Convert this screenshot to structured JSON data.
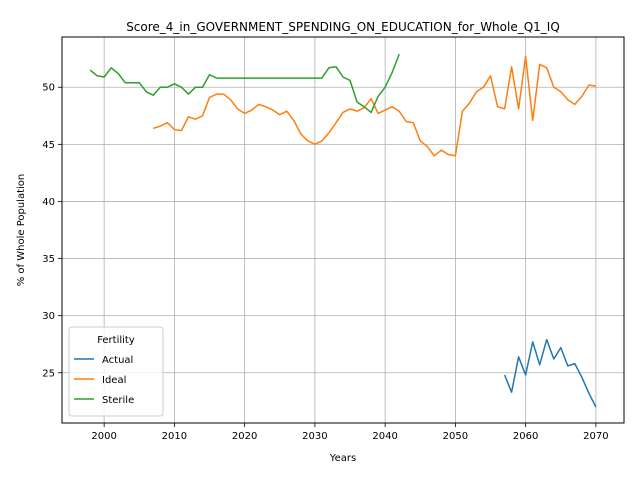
{
  "chart_data": {
    "type": "line",
    "title": "Score_4_in_GOVERNMENT_SPENDING_ON_EDUCATION_for_Whole_Q1_IQ",
    "xlabel": "Years",
    "ylabel": "% of Whole Population",
    "xlim": [
      1994,
      2074
    ],
    "ylim": [
      20.6,
      54.4
    ],
    "xticks": [
      2000,
      2010,
      2020,
      2030,
      2040,
      2050,
      2060,
      2070
    ],
    "yticks": [
      25,
      30,
      35,
      40,
      45,
      50
    ],
    "grid": true,
    "legend": {
      "title": "Fertility",
      "placement": "lower-left"
    },
    "series": [
      {
        "name": "Actual",
        "color": "#1f77b4",
        "points": [
          [
            2057,
            24.8
          ],
          [
            2058,
            23.3
          ],
          [
            2059,
            26.4
          ],
          [
            2060,
            24.8
          ],
          [
            2061,
            27.7
          ],
          [
            2062,
            25.7
          ],
          [
            2063,
            27.9
          ],
          [
            2064,
            26.2
          ],
          [
            2065,
            27.2
          ],
          [
            2066,
            25.6
          ],
          [
            2067,
            25.8
          ],
          [
            2068,
            24.6
          ],
          [
            2069,
            23.2
          ],
          [
            2070,
            22.0
          ]
        ]
      },
      {
        "name": "Ideal",
        "color": "#ff7f0e",
        "points": [
          [
            2007,
            46.4
          ],
          [
            2008,
            46.6
          ],
          [
            2009,
            46.9
          ],
          [
            2010,
            46.3
          ],
          [
            2011,
            46.2
          ],
          [
            2012,
            47.4
          ],
          [
            2013,
            47.2
          ],
          [
            2014,
            47.5
          ],
          [
            2015,
            49.1
          ],
          [
            2016,
            49.4
          ],
          [
            2017,
            49.4
          ],
          [
            2018,
            48.9
          ],
          [
            2019,
            48.1
          ],
          [
            2020,
            47.7
          ],
          [
            2021,
            48.0
          ],
          [
            2022,
            48.5
          ],
          [
            2023,
            48.3
          ],
          [
            2024,
            48.0
          ],
          [
            2025,
            47.6
          ],
          [
            2026,
            47.9
          ],
          [
            2027,
            47.1
          ],
          [
            2028,
            45.9
          ],
          [
            2029,
            45.3
          ],
          [
            2030,
            45.0
          ],
          [
            2031,
            45.3
          ],
          [
            2032,
            46.0
          ],
          [
            2033,
            46.9
          ],
          [
            2034,
            47.8
          ],
          [
            2035,
            48.1
          ],
          [
            2036,
            47.9
          ],
          [
            2037,
            48.2
          ],
          [
            2038,
            49.0
          ],
          [
            2039,
            47.7
          ],
          [
            2040,
            48.0
          ],
          [
            2041,
            48.3
          ],
          [
            2042,
            47.9
          ],
          [
            2043,
            47.0
          ],
          [
            2044,
            46.9
          ],
          [
            2045,
            45.3
          ],
          [
            2046,
            44.8
          ],
          [
            2047,
            44.0
          ],
          [
            2048,
            44.5
          ],
          [
            2049,
            44.1
          ],
          [
            2050,
            44.0
          ],
          [
            2051,
            47.9
          ],
          [
            2052,
            48.6
          ],
          [
            2053,
            49.6
          ],
          [
            2054,
            50.0
          ],
          [
            2055,
            51.0
          ],
          [
            2056,
            48.3
          ],
          [
            2057,
            48.1
          ],
          [
            2058,
            51.8
          ],
          [
            2059,
            48.1
          ],
          [
            2060,
            52.7
          ],
          [
            2061,
            47.1
          ],
          [
            2062,
            52.0
          ],
          [
            2063,
            51.7
          ],
          [
            2064,
            50.0
          ],
          [
            2065,
            49.6
          ],
          [
            2066,
            48.9
          ],
          [
            2067,
            48.5
          ],
          [
            2068,
            49.2
          ],
          [
            2069,
            50.2
          ],
          [
            2070,
            50.1
          ]
        ]
      },
      {
        "name": "Sterile",
        "color": "#2ca02c",
        "points": [
          [
            1998,
            51.5
          ],
          [
            1999,
            51.0
          ],
          [
            2000,
            50.9
          ],
          [
            2001,
            51.7
          ],
          [
            2002,
            51.2
          ],
          [
            2003,
            50.4
          ],
          [
            2004,
            50.4
          ],
          [
            2005,
            50.4
          ],
          [
            2006,
            49.6
          ],
          [
            2007,
            49.3
          ],
          [
            2008,
            50.0
          ],
          [
            2009,
            50.0
          ],
          [
            2010,
            50.3
          ],
          [
            2011,
            50.0
          ],
          [
            2012,
            49.4
          ],
          [
            2013,
            50.0
          ],
          [
            2014,
            50.0
          ],
          [
            2015,
            51.1
          ],
          [
            2016,
            50.8
          ],
          [
            2017,
            50.8
          ],
          [
            2018,
            50.8
          ],
          [
            2019,
            50.8
          ],
          [
            2020,
            50.8
          ],
          [
            2021,
            50.8
          ],
          [
            2022,
            50.8
          ],
          [
            2023,
            50.8
          ],
          [
            2024,
            50.8
          ],
          [
            2025,
            50.8
          ],
          [
            2026,
            50.8
          ],
          [
            2027,
            50.8
          ],
          [
            2028,
            50.8
          ],
          [
            2029,
            50.8
          ],
          [
            2030,
            50.8
          ],
          [
            2031,
            50.8
          ],
          [
            2032,
            51.7
          ],
          [
            2033,
            51.8
          ],
          [
            2034,
            50.9
          ],
          [
            2035,
            50.6
          ],
          [
            2036,
            48.7
          ],
          [
            2037,
            48.3
          ],
          [
            2038,
            47.8
          ],
          [
            2039,
            49.2
          ],
          [
            2040,
            50.0
          ],
          [
            2041,
            51.3
          ],
          [
            2042,
            52.9
          ]
        ]
      }
    ]
  }
}
